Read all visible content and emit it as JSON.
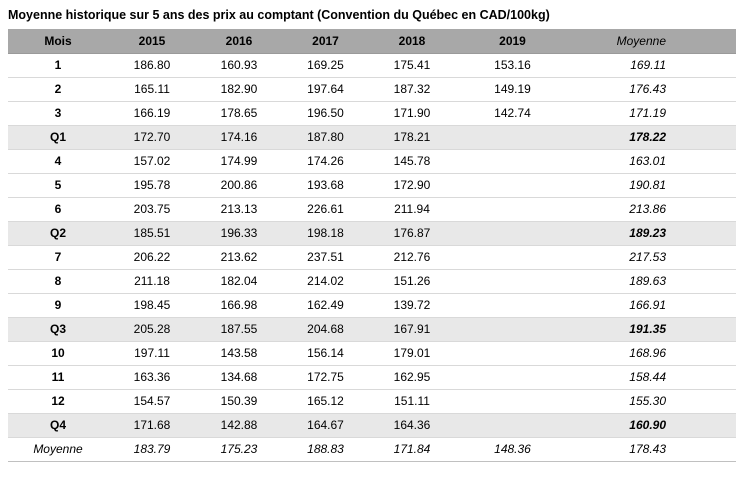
{
  "title": "Moyenne historique sur 5 ans des prix au comptant (Convention du Québec en CAD/100kg)",
  "chart_data": {
    "type": "table",
    "columns": [
      "Mois",
      "2015",
      "2016",
      "2017",
      "2018",
      "2019",
      "Moyenne"
    ],
    "rows": [
      {
        "label": "1",
        "type": "month",
        "values": [
          "186.80",
          "160.93",
          "169.25",
          "175.41",
          "153.16"
        ],
        "moyenne": "169.11"
      },
      {
        "label": "2",
        "type": "month",
        "values": [
          "165.11",
          "182.90",
          "197.64",
          "187.32",
          "149.19"
        ],
        "moyenne": "176.43"
      },
      {
        "label": "3",
        "type": "month",
        "values": [
          "166.19",
          "178.65",
          "196.50",
          "171.90",
          "142.74"
        ],
        "moyenne": "171.19"
      },
      {
        "label": "Q1",
        "type": "quarter",
        "values": [
          "172.70",
          "174.16",
          "187.80",
          "178.21",
          ""
        ],
        "moyenne": "178.22"
      },
      {
        "label": "4",
        "type": "month",
        "values": [
          "157.02",
          "174.99",
          "174.26",
          "145.78",
          ""
        ],
        "moyenne": "163.01"
      },
      {
        "label": "5",
        "type": "month",
        "values": [
          "195.78",
          "200.86",
          "193.68",
          "172.90",
          ""
        ],
        "moyenne": "190.81"
      },
      {
        "label": "6",
        "type": "month",
        "values": [
          "203.75",
          "213.13",
          "226.61",
          "211.94",
          ""
        ],
        "moyenne": "213.86"
      },
      {
        "label": "Q2",
        "type": "quarter",
        "values": [
          "185.51",
          "196.33",
          "198.18",
          "176.87",
          ""
        ],
        "moyenne": "189.23"
      },
      {
        "label": "7",
        "type": "month",
        "values": [
          "206.22",
          "213.62",
          "237.51",
          "212.76",
          ""
        ],
        "moyenne": "217.53"
      },
      {
        "label": "8",
        "type": "month",
        "values": [
          "211.18",
          "182.04",
          "214.02",
          "151.26",
          ""
        ],
        "moyenne": "189.63"
      },
      {
        "label": "9",
        "type": "month",
        "values": [
          "198.45",
          "166.98",
          "162.49",
          "139.72",
          ""
        ],
        "moyenne": "166.91"
      },
      {
        "label": "Q3",
        "type": "quarter",
        "values": [
          "205.28",
          "187.55",
          "204.68",
          "167.91",
          ""
        ],
        "moyenne": "191.35"
      },
      {
        "label": "10",
        "type": "month",
        "values": [
          "197.11",
          "143.58",
          "156.14",
          "179.01",
          ""
        ],
        "moyenne": "168.96"
      },
      {
        "label": "11",
        "type": "month",
        "values": [
          "163.36",
          "134.68",
          "172.75",
          "162.95",
          ""
        ],
        "moyenne": "158.44"
      },
      {
        "label": "12",
        "type": "month",
        "values": [
          "154.57",
          "150.39",
          "165.12",
          "151.11",
          ""
        ],
        "moyenne": "155.30"
      },
      {
        "label": "Q4",
        "type": "quarter",
        "values": [
          "171.68",
          "142.88",
          "164.67",
          "164.36",
          ""
        ],
        "moyenne": "160.90"
      },
      {
        "label": "Moyenne",
        "type": "total",
        "values": [
          "183.79",
          "175.23",
          "188.83",
          "171.84",
          "148.36"
        ],
        "moyenne": "178.43"
      }
    ],
    "colors": {
      "header_bg": "#a8a8a8",
      "quarter_row_bg": "#e8e8e8",
      "row_border": "#d9d9d9"
    }
  }
}
